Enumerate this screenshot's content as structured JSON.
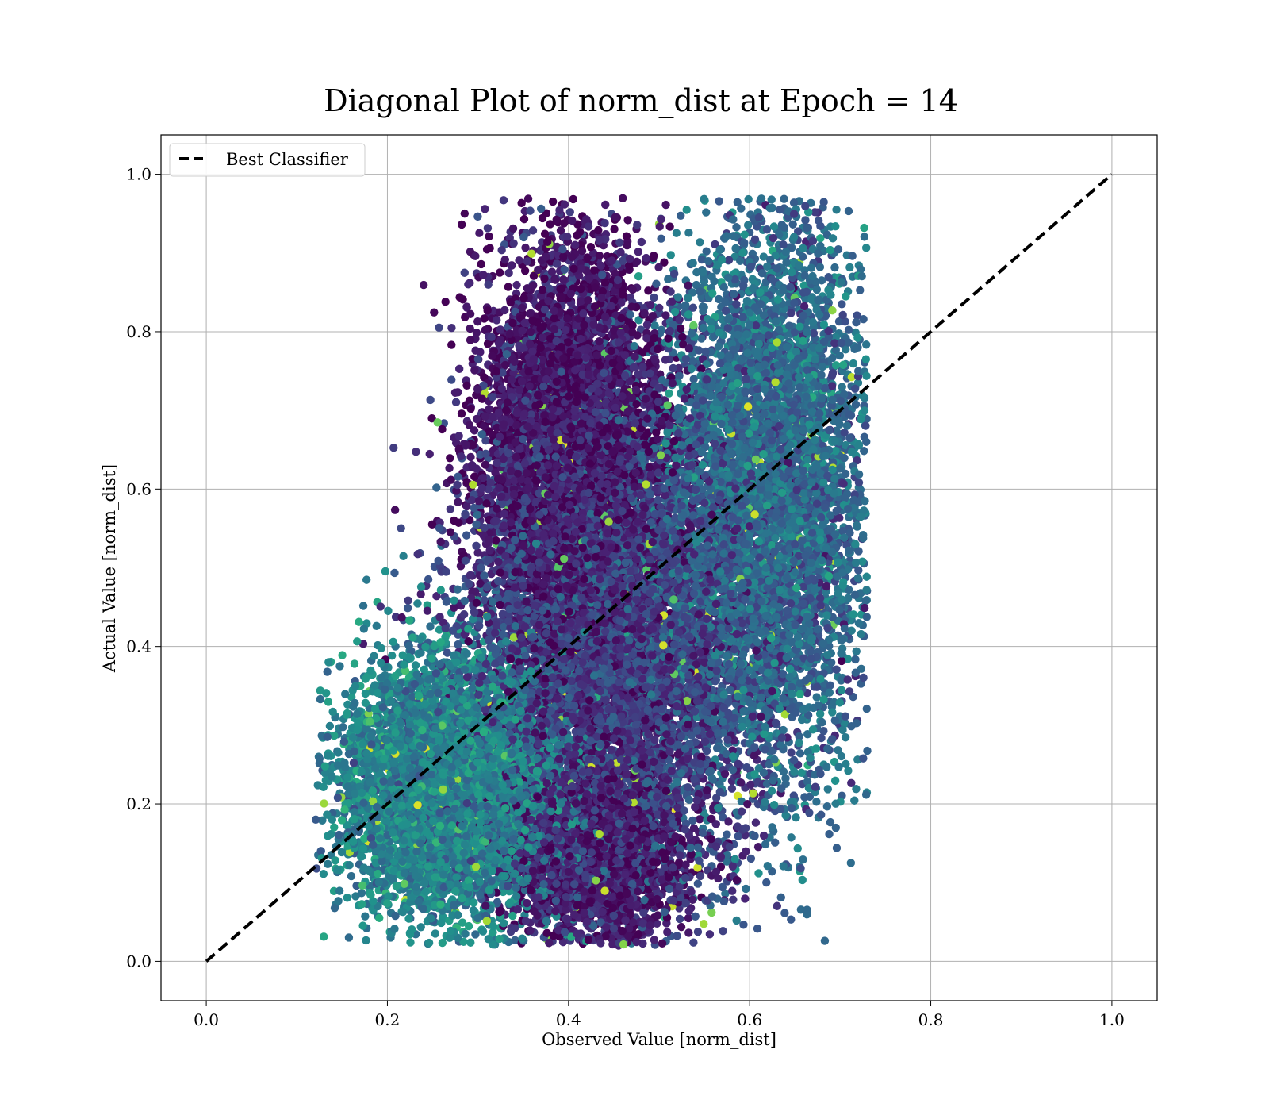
{
  "chart_data": {
    "type": "scatter",
    "title": "Diagonal Plot of norm_dist at Epoch = 14",
    "xlabel": "Observed Value [norm_dist]",
    "ylabel": "Actual Value [norm_dist]",
    "xlim": [
      -0.05,
      1.05
    ],
    "ylim": [
      -0.05,
      1.05
    ],
    "xticks": [
      "0.0",
      "0.2",
      "0.4",
      "0.6",
      "0.8",
      "1.0"
    ],
    "yticks": [
      "0.0",
      "0.2",
      "0.4",
      "0.6",
      "0.8",
      "1.0"
    ],
    "grid": true,
    "legend": {
      "placement": "upper-left",
      "entries": [
        {
          "label": "Best Classifier",
          "style": "dashed",
          "color": "#000000"
        }
      ]
    },
    "reference_line": {
      "label": "Best Classifier",
      "x": [
        0.0,
        1.0
      ],
      "y": [
        0.0,
        1.0
      ],
      "color": "#000000",
      "style": "dashed"
    },
    "scatter": {
      "colormap": "viridis",
      "approx_point_count": 25000,
      "x_range": [
        0.12,
        0.73
      ],
      "y_range": [
        0.02,
        0.97
      ],
      "clusters": [
        {
          "name": "low",
          "x_mean": 0.27,
          "y_mean": 0.22,
          "x_sd": 0.06,
          "y_sd": 0.08,
          "weight": 0.22,
          "tone": 0.45
        },
        {
          "name": "upper-left",
          "x_mean": 0.4,
          "y_mean": 0.66,
          "x_sd": 0.05,
          "y_sd": 0.14,
          "weight": 0.2,
          "tone": 0.08
        },
        {
          "name": "center",
          "x_mean": 0.45,
          "y_mean": 0.4,
          "x_sd": 0.08,
          "y_sd": 0.14,
          "weight": 0.26,
          "tone": 0.2
        },
        {
          "name": "right",
          "x_mean": 0.62,
          "y_mean": 0.6,
          "x_sd": 0.06,
          "y_sd": 0.18,
          "weight": 0.22,
          "tone": 0.35
        },
        {
          "name": "bottom",
          "x_mean": 0.43,
          "y_mean": 0.14,
          "x_sd": 0.05,
          "y_sd": 0.06,
          "weight": 0.1,
          "tone": 0.1
        }
      ]
    }
  }
}
